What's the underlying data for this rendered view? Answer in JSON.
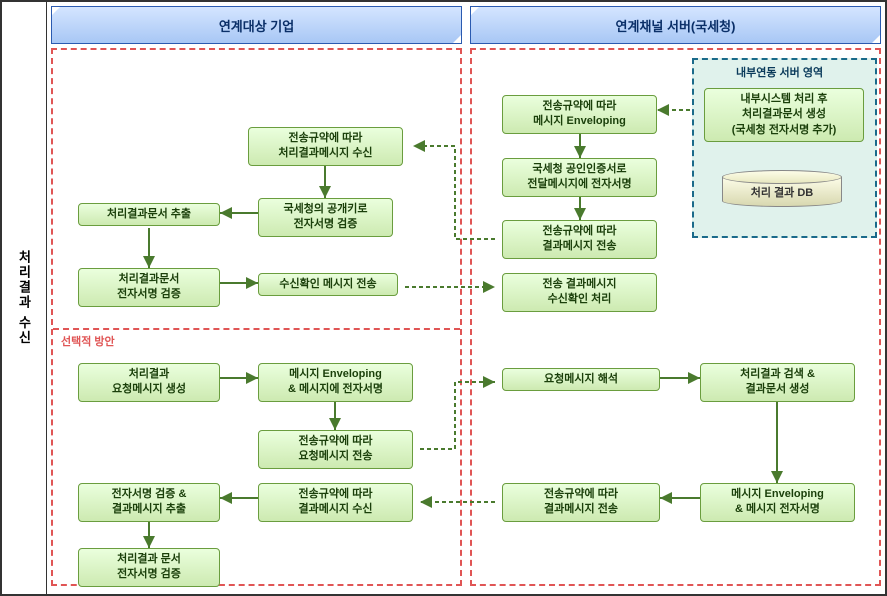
{
  "type": "flowchart",
  "sidebar_label": "처리결과 수신",
  "headers": {
    "left": "연계대상 기업",
    "right": "연계채널 서버(국세청)"
  },
  "section_label": "선택적 방안",
  "inner_region_title": "내부연동 서버 영역",
  "colors": {
    "node_bg_top": "#eaffdd",
    "node_bg_bottom": "#cdeab1",
    "node_border": "#6a9d3e",
    "header_bg_top": "#d4e5ff",
    "header_bg_bottom": "#a8c7f5",
    "header_border": "#2a5ab0",
    "dashed_border": "#e05555",
    "inner_region_bg": "#e0f2ec",
    "inner_region_border": "#1a6a8a",
    "arrow": "#4a7a2e",
    "arrow_dashed": "#4a7a2e"
  },
  "left_nodes": {
    "n1": "전송규약에 따라\n처리결과메시지 수신",
    "n2": "처리결과문서 추출",
    "n3": "국세청의 공개키로\n전자서명 검증",
    "n4": "처리결과문서\n전자서명 검증",
    "n5": "수신확인 메시지 전송",
    "n6": "처리결과\n요청메시지 생성",
    "n7": "메시지 Enveloping\n& 메시지에 전자서명",
    "n8": "전송규약에 따라\n요청메시지 전송",
    "n9": "전자서명 검증 &\n결과메시지 추출",
    "n10": "전송규약에 따라\n결과메시지 수신",
    "n11": "처리결과 문서\n전자서명 검증"
  },
  "right_nodes": {
    "r1": "전송규약에 따라\n메시지 Enveloping",
    "r2": "국세청 공인인증서로\n전달메시지에 전자서명",
    "r3": "전송규약에 따라\n결과메시지 전송",
    "r4": "전송 결과메시지\n수신확인 처리",
    "r5": "내부시스템 처리 후\n처리결과문서 생성\n(국세청 전자서명 추가)",
    "r6": "요청메시지 해석",
    "r7": "처리결과 검색 &\n결과문서 생성",
    "r8": "전송규약에 따라\n결과메시지 전송",
    "r9": "메시지 Enveloping\n& 메시지 전자서명"
  },
  "db_label": "처리 결과 DB"
}
